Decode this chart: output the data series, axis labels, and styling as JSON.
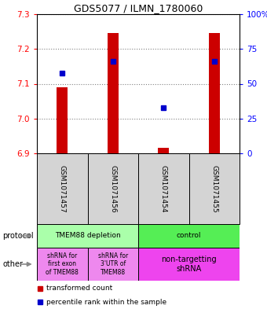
{
  "title": "GDS5077 / ILMN_1780060",
  "samples": [
    "GSM1071457",
    "GSM1071456",
    "GSM1071454",
    "GSM1071455"
  ],
  "bar_values": [
    7.09,
    7.245,
    6.915,
    7.245
  ],
  "bar_bottom": 6.9,
  "percentile_values": [
    7.13,
    7.165,
    7.03,
    7.165
  ],
  "ylim": [
    6.9,
    7.3
  ],
  "yticks_left": [
    6.9,
    7.0,
    7.1,
    7.2,
    7.3
  ],
  "yticks_right": [
    0,
    25,
    50,
    75,
    100
  ],
  "bar_color": "#cc0000",
  "dot_color": "#0000cc",
  "protocol_labels": [
    "TMEM88 depletion",
    "control"
  ],
  "protocol_color_left": "#aaffaa",
  "protocol_color_right": "#55ee55",
  "other_labels": [
    "shRNA for\nfirst exon\nof TMEM88",
    "shRNA for\n3'UTR of\nTMEM88",
    "non-targetting\nshRNA"
  ],
  "other_color_12": "#ee88ee",
  "other_color_3": "#ee44ee",
  "sample_box_color": "#d4d4d4",
  "legend_red": "transformed count",
  "legend_blue": "percentile rank within the sample",
  "fig_width": 3.4,
  "fig_height": 3.93,
  "dpi": 100
}
